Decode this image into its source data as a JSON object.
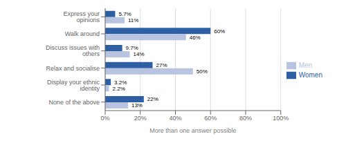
{
  "chart_data": {
    "type": "bar",
    "orientation": "horizontal",
    "categories": [
      "Express your opinions",
      "Walk around",
      "Discuss issues with others",
      "Relax and socialise",
      "Display your ethnic identity",
      "None of the above"
    ],
    "series": [
      {
        "name": "Women",
        "color": "#2E5FA3",
        "values": [
          5.7,
          60,
          9.7,
          27,
          3.2,
          22
        ],
        "value_labels": [
          "5.7%",
          "60%",
          "9.7%",
          "27%",
          "3.2%",
          "22%"
        ]
      },
      {
        "name": "Men",
        "color": "#B8C4E0",
        "values": [
          11,
          46,
          14,
          50,
          2.2,
          13
        ],
        "value_labels": [
          "11%",
          "46%",
          "14%",
          "50%",
          "2.2%",
          "13%"
        ]
      }
    ],
    "xlabel": "More than one answer possible",
    "xlim": [
      0,
      100
    ],
    "xticks": [
      {
        "value": 0,
        "label": "0%"
      },
      {
        "value": 20,
        "label": "20%"
      },
      {
        "value": 40,
        "label": "40%"
      },
      {
        "value": 60,
        "label": "60%"
      },
      {
        "value": 80,
        "label": "80%"
      },
      {
        "value": 100,
        "label": "100%"
      }
    ],
    "grid": true,
    "legend": "right",
    "data_labels": true
  }
}
